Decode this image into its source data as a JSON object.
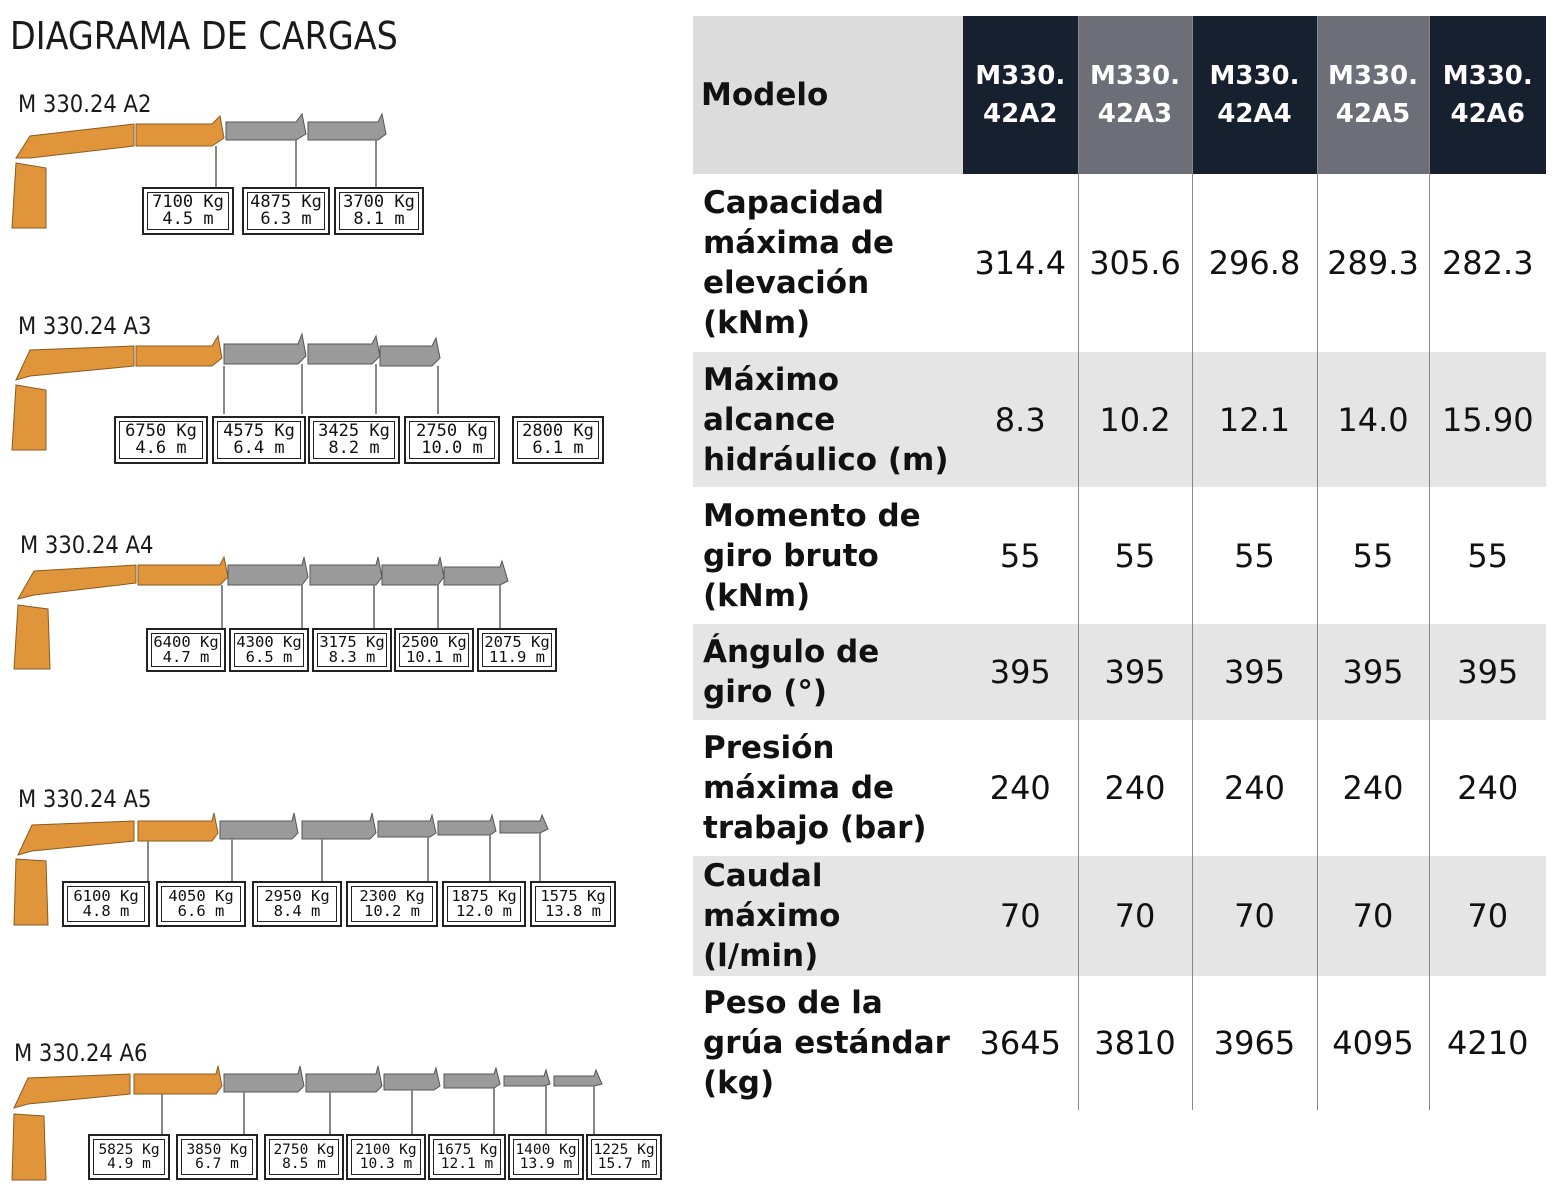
{
  "diagram_title": "DIAGRAMA DE CARGAS",
  "colors": {
    "boom_orange": "#e0953a",
    "boom_gray": "#9a9a9a",
    "header_dark": "#17202e",
    "header_gray": "#6c6f77",
    "row_shade": "#e5e5e5"
  },
  "cranes": [
    {
      "label": "M 330.24 A2",
      "loads": [
        {
          "kg": "7100 Kg",
          "m": "4.5 m"
        },
        {
          "kg": "4875 Kg",
          "m": "6.3 m"
        },
        {
          "kg": "3700 Kg",
          "m": "8.1 m"
        }
      ]
    },
    {
      "label": "M 330.24 A3",
      "loads": [
        {
          "kg": "6750 Kg",
          "m": "4.6 m"
        },
        {
          "kg": "4575 Kg",
          "m": "6.4 m"
        },
        {
          "kg": "3425 Kg",
          "m": "8.2 m"
        },
        {
          "kg": "2750 Kg",
          "m": "10.0 m"
        },
        {
          "kg": "2800 Kg",
          "m": "6.1 m"
        }
      ]
    },
    {
      "label": "M 330.24 A4",
      "loads": [
        {
          "kg": "6400 Kg",
          "m": "4.7 m"
        },
        {
          "kg": "4300 Kg",
          "m": "6.5 m"
        },
        {
          "kg": "3175 Kg",
          "m": "8.3 m"
        },
        {
          "kg": "2500 Kg",
          "m": "10.1 m"
        },
        {
          "kg": "2075 Kg",
          "m": "11.9 m"
        }
      ]
    },
    {
      "label": "M 330.24 A5",
      "loads": [
        {
          "kg": "6100 Kg",
          "m": "4.8 m"
        },
        {
          "kg": "4050 Kg",
          "m": "6.6 m"
        },
        {
          "kg": "2950 Kg",
          "m": "8.4 m"
        },
        {
          "kg": "2300 Kg",
          "m": "10.2 m"
        },
        {
          "kg": "1875 Kg",
          "m": "12.0 m"
        },
        {
          "kg": "1575 Kg",
          "m": "13.8 m"
        }
      ]
    },
    {
      "label": "M 330.24 A6",
      "loads": [
        {
          "kg": "5825 Kg",
          "m": "4.9 m"
        },
        {
          "kg": "3850 Kg",
          "m": "6.7 m"
        },
        {
          "kg": "2750 Kg",
          "m": "8.5 m"
        },
        {
          "kg": "2100 Kg",
          "m": "10.3 m"
        },
        {
          "kg": "1675 Kg",
          "m": "12.1 m"
        },
        {
          "kg": "1400 Kg",
          "m": "13.9 m"
        },
        {
          "kg": "1225 Kg",
          "m": "15.7 m"
        }
      ]
    }
  ],
  "table": {
    "header_label": "Modelo",
    "models": [
      {
        "line1": "M330.",
        "line2": "42A2"
      },
      {
        "line1": "M330.",
        "line2": "42A3"
      },
      {
        "line1": "M330.",
        "line2": "42A4"
      },
      {
        "line1": "M330.",
        "line2": "42A5"
      },
      {
        "line1": "M330.",
        "line2": "42A6"
      }
    ],
    "rows": [
      {
        "label_lines": [
          "Capacidad",
          "máxima de",
          "elevación",
          "(kNm)"
        ],
        "values": [
          "314.4",
          "305.6",
          "296.8",
          "289.3",
          "282.3"
        ]
      },
      {
        "label_lines": [
          "Máximo",
          "alcance",
          "hidráulico (m)"
        ],
        "values": [
          "8.3",
          "10.2",
          "12.1",
          "14.0",
          "15.90"
        ]
      },
      {
        "label_lines": [
          "Momento de",
          "giro bruto",
          "(kNm)"
        ],
        "values": [
          "55",
          "55",
          "55",
          "55",
          "55"
        ]
      },
      {
        "label_lines": [
          "Ángulo de",
          "giro (°)"
        ],
        "values": [
          "395",
          "395",
          "395",
          "395",
          "395"
        ]
      },
      {
        "label_lines": [
          "Presión",
          "máxima de",
          "trabajo (bar)"
        ],
        "values": [
          "240",
          "240",
          "240",
          "240",
          "240"
        ]
      },
      {
        "label_lines": [
          "Caudal",
          "máximo (l/min)"
        ],
        "values": [
          "70",
          "70",
          "70",
          "70",
          "70"
        ]
      },
      {
        "label_lines": [
          "Peso de la",
          "grúa estándar",
          "(kg)"
        ],
        "values": [
          "3645",
          "3810",
          "3965",
          "4095",
          "4210"
        ]
      }
    ]
  }
}
